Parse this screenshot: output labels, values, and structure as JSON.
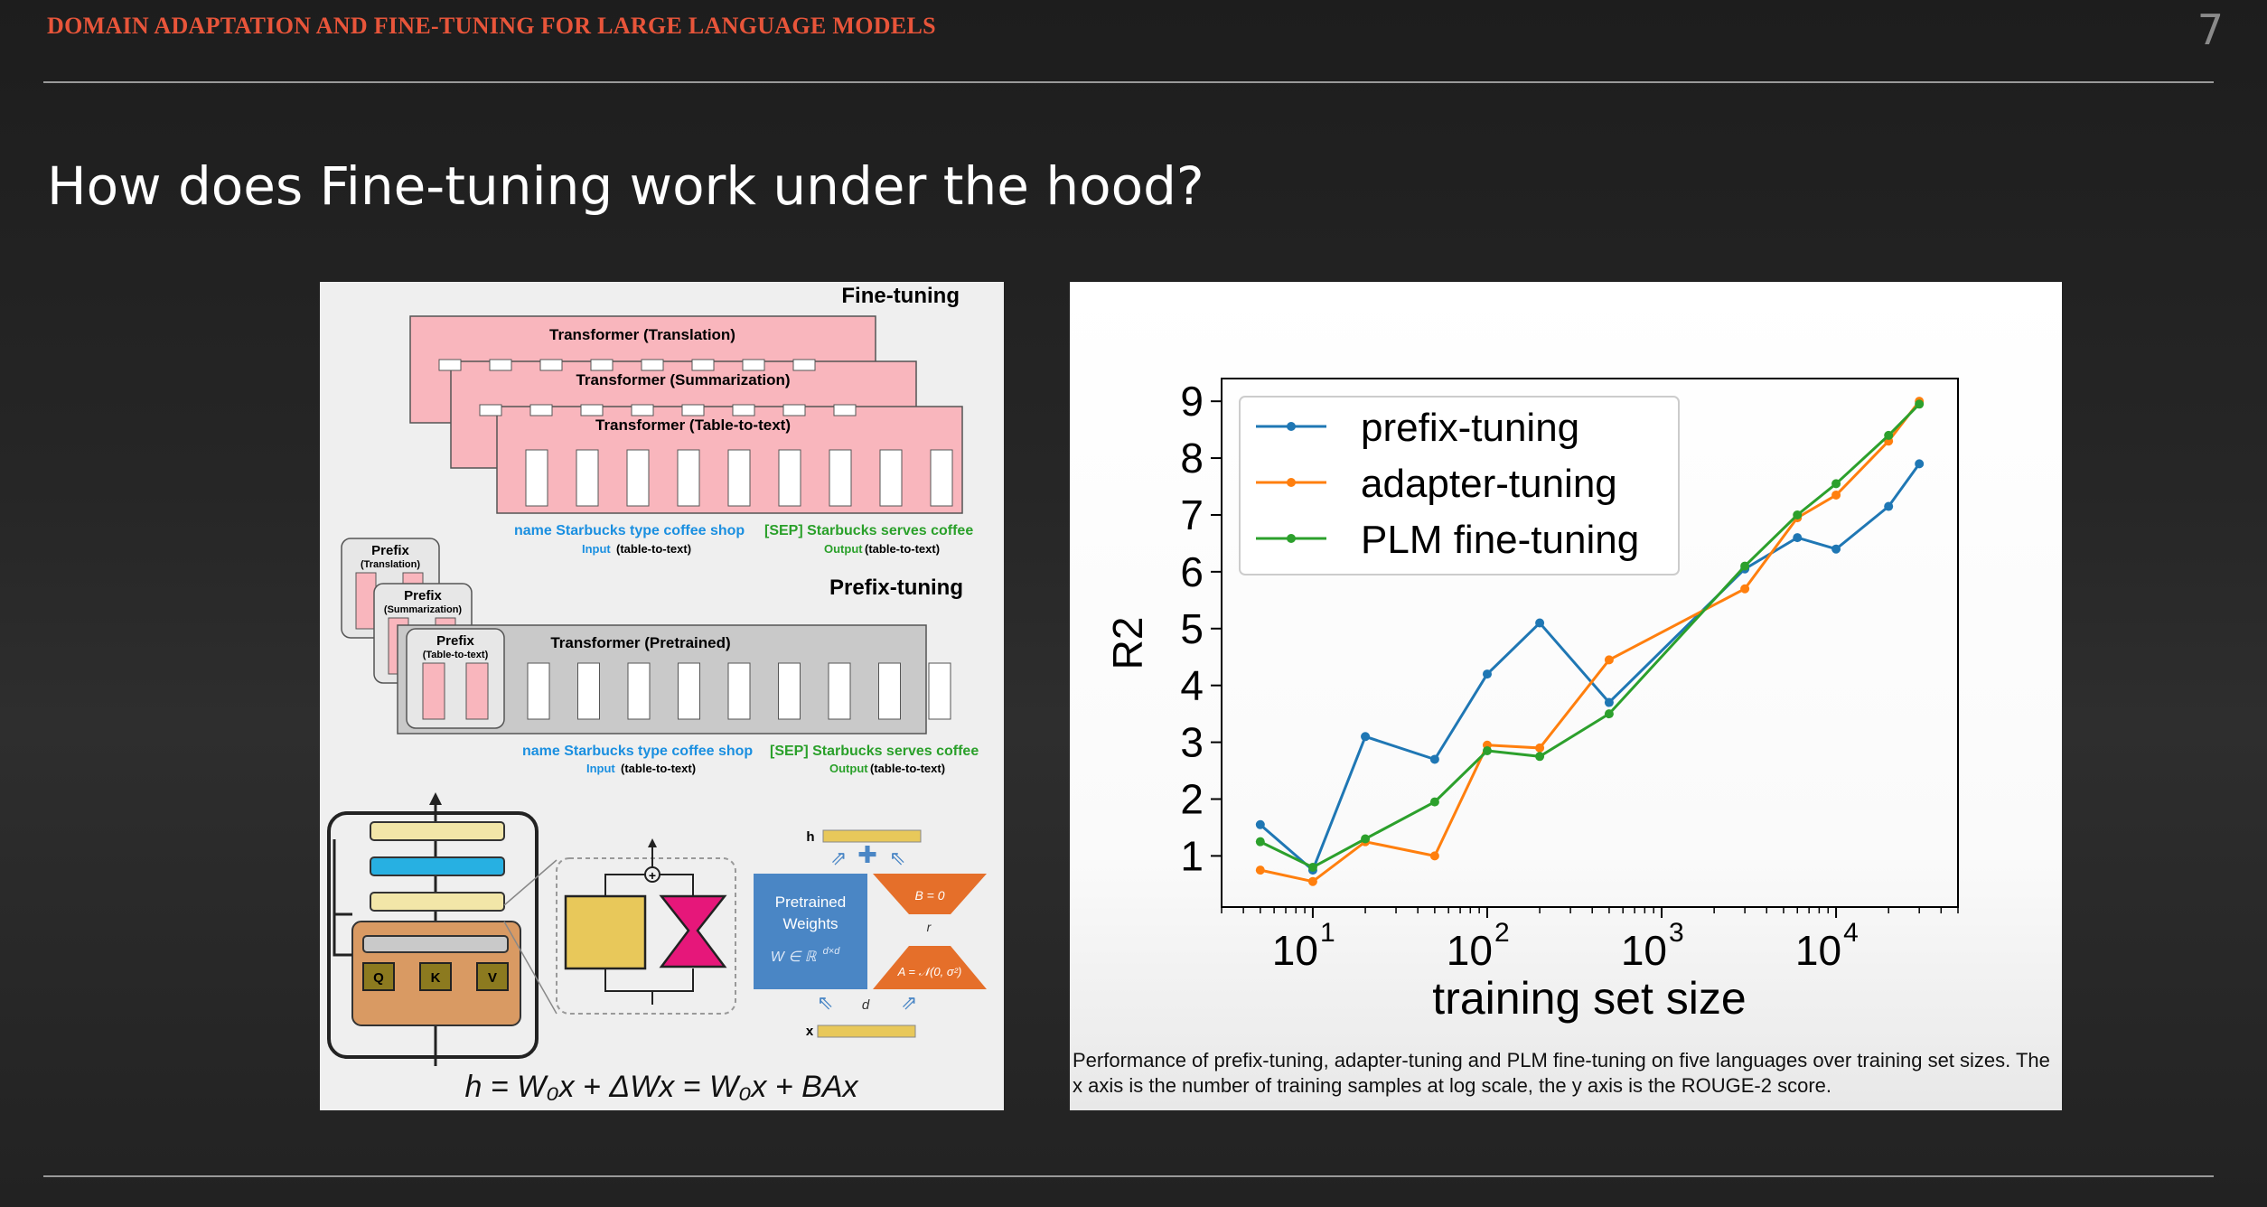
{
  "header": {
    "title": "DOMAIN ADAPTATION AND FINE-TUNING FOR LARGE LANGUAGE MODELS",
    "page_number": "7"
  },
  "slide": {
    "title": "How does Fine-tuning work under the hood?"
  },
  "diagram": {
    "fine_tuning_label": "Fine-tuning",
    "prefix_tuning_label": "Prefix-tuning",
    "transformers": [
      "Transformer (Translation)",
      "Transformer (Summarization)",
      "Transformer (Table-to-text)"
    ],
    "pretrained_label": "Transformer  (Pretrained)",
    "prefixes": [
      {
        "title": "Prefix",
        "sub": "(Translation)"
      },
      {
        "title": "Prefix",
        "sub": "(Summarization)"
      },
      {
        "title": "Prefix",
        "sub": "(Table-to-text)"
      }
    ],
    "input_tokens": "name  Starbucks  type  coffee  shop",
    "output_tokens": "[SEP] Starbucks  serves  coffee",
    "input_label": "Input",
    "output_label": "Output",
    "task_tag": "(table-to-text)",
    "lora": {
      "qkv": [
        "Q",
        "K",
        "V"
      ],
      "h": "h",
      "x": "x",
      "d": "d",
      "r": "r",
      "pretrained_line1": "Pretrained",
      "pretrained_line2": "Weights",
      "weight_space": "W ∈ ℝ",
      "weight_dims": "d×d",
      "b_init": "B = 0",
      "a_init": "A = 𝒩(0, σ²)",
      "equation": "h = W₀x + ΔWx = W₀x + BAx"
    },
    "colors": {
      "pink": "#f9b6bd",
      "blue_text": "#1a8fe0",
      "green_text": "#2aa02a",
      "lora_blue": "#4a86c5",
      "lora_orange": "#e56f2a"
    }
  },
  "chart_data": {
    "type": "line",
    "title": "",
    "xlabel": "training set size",
    "ylabel": "R2",
    "xscale": "log",
    "xlim": [
      3,
      50000
    ],
    "ylim": [
      0.1,
      9.4
    ],
    "xticks": [
      10,
      100,
      1000,
      10000
    ],
    "xtick_labels": [
      "10",
      "10",
      "10",
      "10"
    ],
    "xtick_exponents": [
      "1",
      "2",
      "3",
      "4"
    ],
    "yticks": [
      "1",
      "2",
      "3",
      "4",
      "5",
      "6",
      "7",
      "8",
      "9"
    ],
    "legend_position": "top-left",
    "grid": false,
    "series": [
      {
        "name": "prefix-tuning",
        "color": "#1f77b4",
        "x": [
          5,
          10,
          20,
          50,
          100,
          200,
          500,
          3000,
          6000,
          10000,
          20000,
          30000
        ],
        "y": [
          1.55,
          0.75,
          3.1,
          2.7,
          4.2,
          5.1,
          3.7,
          6.05,
          6.6,
          6.4,
          7.15,
          7.9
        ]
      },
      {
        "name": "adapter-tuning",
        "color": "#ff7f0e",
        "x": [
          5,
          10,
          20,
          50,
          100,
          200,
          500,
          3000,
          6000,
          10000,
          20000,
          30000
        ],
        "y": [
          0.75,
          0.55,
          1.25,
          1.0,
          2.95,
          2.9,
          4.45,
          5.7,
          6.95,
          7.35,
          8.3,
          9.0
        ]
      },
      {
        "name": "PLM fine-tuning",
        "color": "#2ca02c",
        "x": [
          5,
          10,
          20,
          50,
          100,
          200,
          500,
          3000,
          6000,
          10000,
          20000,
          30000
        ],
        "y": [
          1.25,
          0.8,
          1.3,
          1.95,
          2.85,
          2.75,
          3.5,
          6.1,
          7.0,
          7.55,
          8.4,
          8.95
        ]
      }
    ]
  },
  "caption": "Performance of prefix-tuning, adapter-tuning and PLM fine-tuning on five languages over training set sizes. The x axis is the number of training samples at log scale, the y axis is the ROUGE-2 score."
}
